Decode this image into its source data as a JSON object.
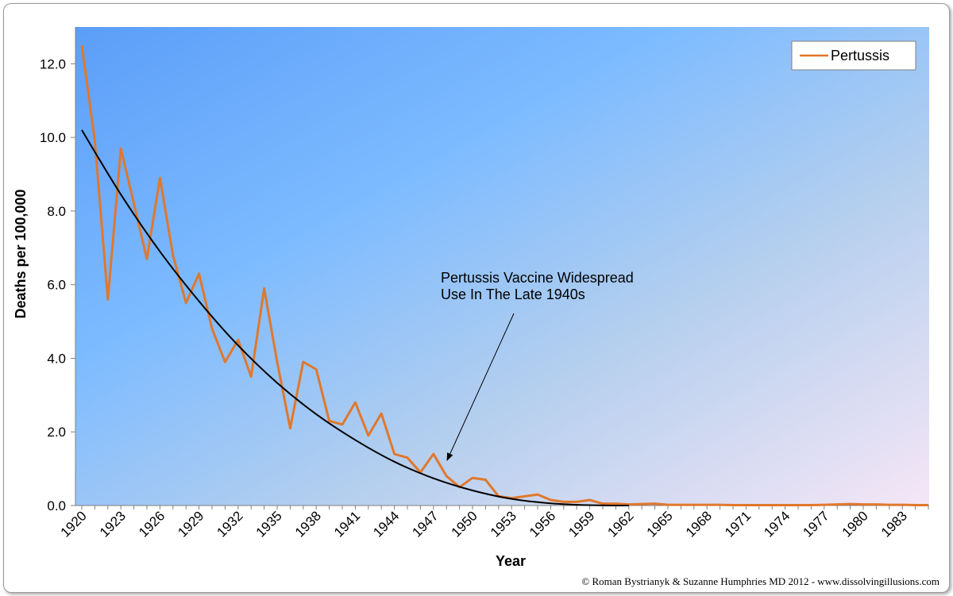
{
  "chart_data": {
    "type": "line",
    "xlabel": "Year",
    "ylabel": "Deaths per 100,000",
    "xlim": [
      1920,
      1985
    ],
    "ylim": [
      0,
      13
    ],
    "y_ticks": [
      "0.0",
      "2.0",
      "4.0",
      "6.0",
      "8.0",
      "10.0",
      "12.0"
    ],
    "x_ticks": [
      "1920",
      "1923",
      "1926",
      "1929",
      "1932",
      "1935",
      "1938",
      "1941",
      "1944",
      "1947",
      "1950",
      "1953",
      "1956",
      "1959",
      "1962",
      "1965",
      "1968",
      "1971",
      "1974",
      "1977",
      "1980",
      "1983"
    ],
    "legend": {
      "position": "top-right",
      "entries": [
        "Pertussis"
      ]
    },
    "grid": false,
    "series": [
      {
        "name": "Pertussis",
        "color": "#e0782c",
        "x": [
          1920,
          1921,
          1922,
          1923,
          1924,
          1925,
          1926,
          1927,
          1928,
          1929,
          1930,
          1931,
          1932,
          1933,
          1934,
          1935,
          1936,
          1937,
          1938,
          1939,
          1940,
          1941,
          1942,
          1943,
          1944,
          1945,
          1946,
          1947,
          1948,
          1949,
          1950,
          1951,
          1952,
          1953,
          1954,
          1955,
          1956,
          1957,
          1958,
          1959,
          1960,
          1961,
          1962,
          1963,
          1964,
          1965,
          1966,
          1967,
          1968,
          1969,
          1970,
          1971,
          1972,
          1973,
          1974,
          1975,
          1976,
          1977,
          1978,
          1979,
          1980,
          1981,
          1982,
          1983,
          1984,
          1985
        ],
        "values": [
          12.5,
          9.9,
          5.6,
          9.7,
          8.2,
          6.7,
          8.9,
          6.8,
          5.5,
          6.3,
          4.8,
          3.9,
          4.5,
          3.5,
          5.9,
          3.9,
          2.1,
          3.9,
          3.7,
          2.3,
          2.2,
          2.8,
          1.9,
          2.5,
          1.4,
          1.3,
          0.9,
          1.4,
          0.8,
          0.5,
          0.75,
          0.7,
          0.25,
          0.2,
          0.25,
          0.3,
          0.15,
          0.1,
          0.1,
          0.15,
          0.05,
          0.05,
          0.03,
          0.04,
          0.05,
          0.02,
          0.02,
          0.02,
          0.02,
          0.02,
          0.01,
          0.01,
          0.01,
          0.01,
          0.01,
          0.01,
          0.01,
          0.02,
          0.03,
          0.04,
          0.03,
          0.03,
          0.02,
          0.02,
          0.01,
          0.01
        ]
      }
    ],
    "trendline": {
      "color": "#000000",
      "x": [
        1920,
        1923,
        1926,
        1929,
        1932,
        1935,
        1938,
        1941,
        1944,
        1947,
        1950,
        1953,
        1956,
        1959,
        1962
      ],
      "values": [
        10.2,
        8.45,
        6.9,
        5.55,
        4.35,
        3.33,
        2.48,
        1.78,
        1.19,
        0.74,
        0.41,
        0.18,
        0.06,
        0.01,
        0.0
      ]
    },
    "annotation": {
      "lines": [
        "Pertussis  Vaccine Widespread",
        "Use In The Late 1940s"
      ],
      "arrow_target": {
        "x": 1947.5,
        "y": 1.2
      }
    }
  },
  "credit": "© Roman Bystrianyk & Suzanne Humphries MD 2012 - www.dissolvingillusions.com"
}
